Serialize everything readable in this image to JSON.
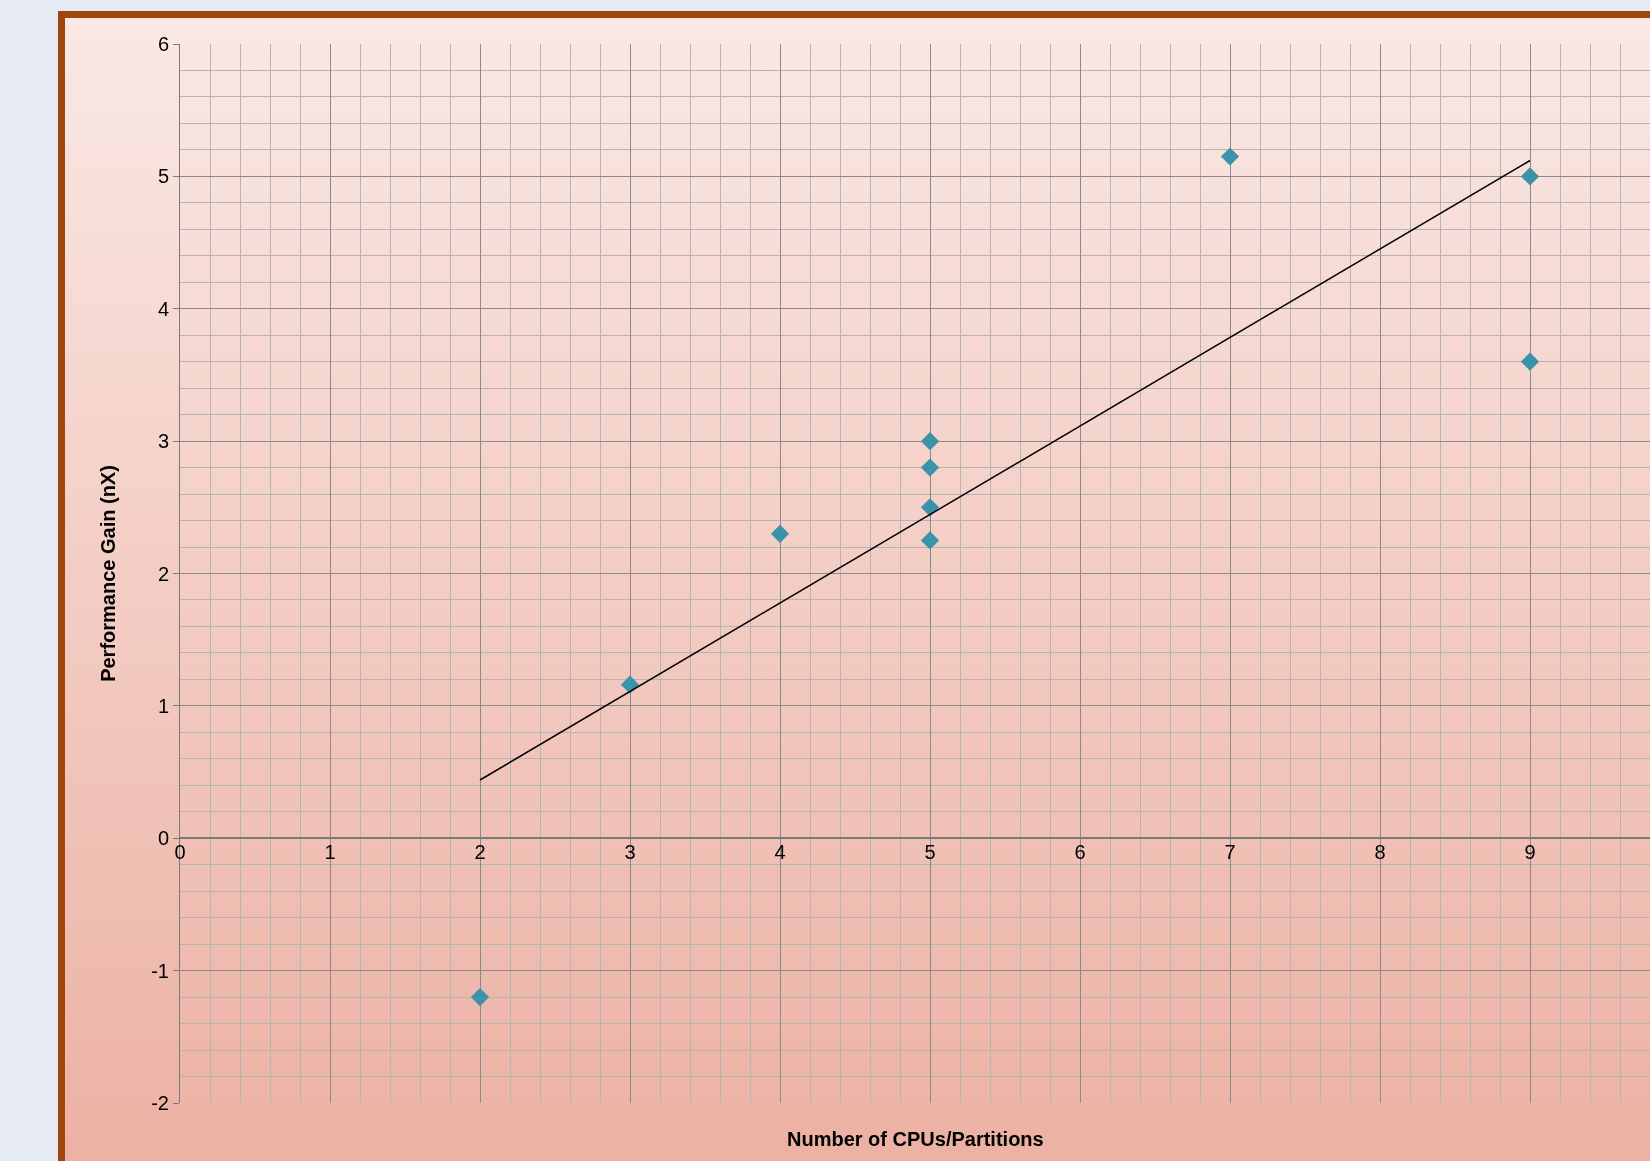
{
  "chart_data": {
    "type": "scatter",
    "xlabel": "Number of CPUs/Partitions",
    "ylabel": "Performance Gain (nX)",
    "xlim": [
      0,
      9.8
    ],
    "ylim": [
      -2,
      6
    ],
    "xticks": [
      0,
      1,
      2,
      3,
      4,
      5,
      6,
      7,
      8,
      9
    ],
    "yticks": [
      -2,
      -1,
      0,
      1,
      2,
      3,
      4,
      5,
      6
    ],
    "grid": true,
    "marker": "diamond",
    "series": [
      {
        "color": "#3a93a8",
        "x": [
          2,
          3,
          4,
          5,
          5,
          5,
          5,
          7,
          9,
          9
        ],
        "values": [
          -1.2,
          1.16,
          2.3,
          3.0,
          2.8,
          2.5,
          2.25,
          5.15,
          5.0,
          3.6
        ]
      },
      {
        "type": "line",
        "color": "#000000",
        "line_style": "solid",
        "marker": "none",
        "x": [
          2,
          9
        ],
        "values": [
          0.44,
          5.12
        ]
      }
    ]
  }
}
